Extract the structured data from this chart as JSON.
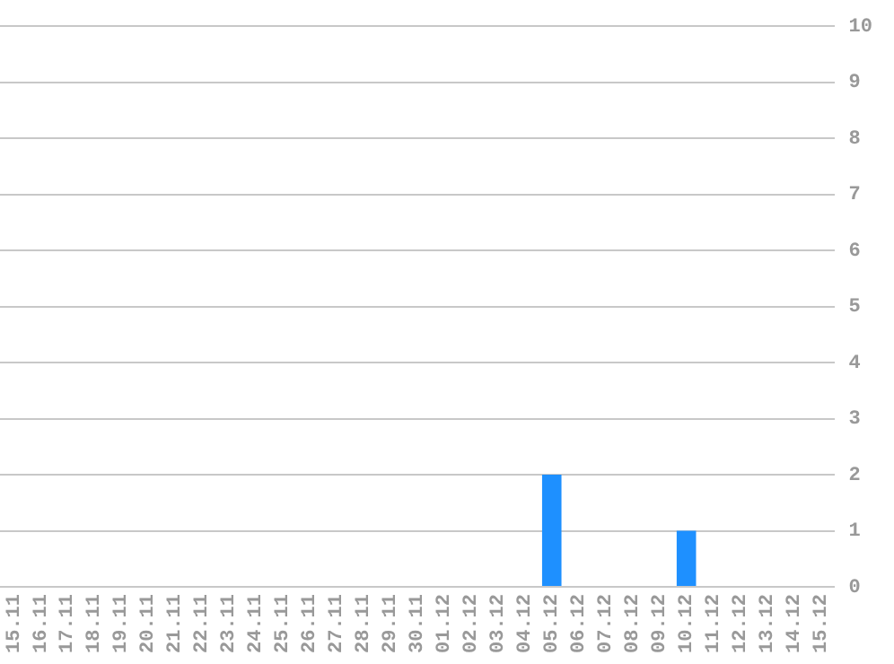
{
  "chart_data": {
    "type": "bar",
    "categories": [
      "15.11",
      "16.11",
      "17.11",
      "18.11",
      "19.11",
      "20.11",
      "21.11",
      "22.11",
      "23.11",
      "24.11",
      "25.11",
      "26.11",
      "27.11",
      "28.11",
      "29.11",
      "30.11",
      "01.12",
      "02.12",
      "03.12",
      "04.12",
      "05.12",
      "06.12",
      "07.12",
      "08.12",
      "09.12",
      "10.12",
      "11.12",
      "12.12",
      "13.12",
      "14.12",
      "15.12"
    ],
    "values": [
      0,
      0,
      0,
      0,
      0,
      0,
      0,
      0,
      0,
      0,
      0,
      0,
      0,
      0,
      0,
      0,
      0,
      0,
      0,
      0,
      2,
      0,
      0,
      0,
      0,
      1,
      0,
      0,
      0,
      0,
      0
    ],
    "color": "#1e90ff",
    "ylim": [
      0,
      10
    ],
    "yticks": [
      0,
      1,
      2,
      3,
      4,
      5,
      6,
      7,
      8,
      9,
      10
    ],
    "grid": "y",
    "legend": false
  }
}
